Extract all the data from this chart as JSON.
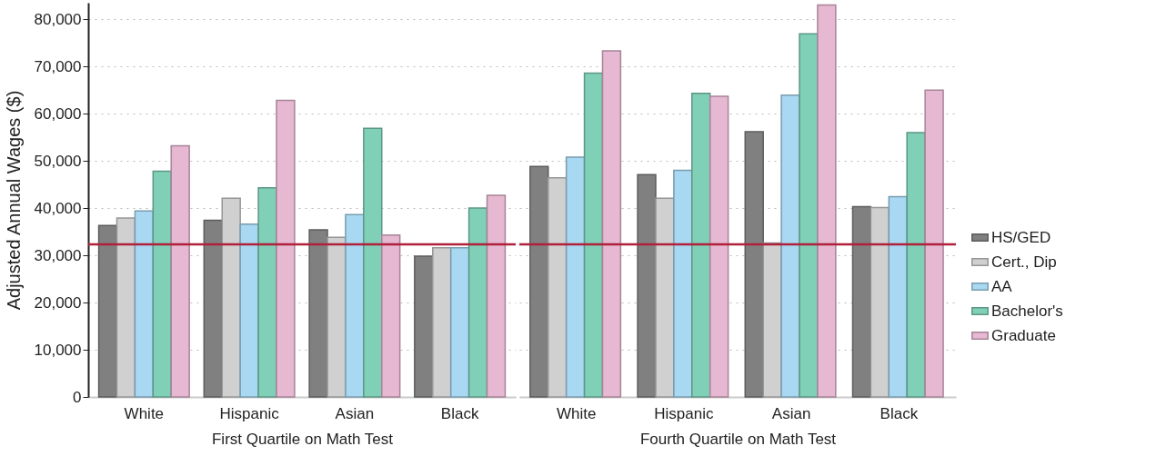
{
  "chart_data": [
    {
      "type": "bar",
      "xlabel": "First Quartile on Math Test",
      "ylabel": "Adjusted Annual Wages ($)",
      "categories": [
        "White",
        "Hispanic",
        "Asian",
        "Black"
      ],
      "series": [
        {
          "color": "#808080",
          "values": [
            36300,
            37400,
            35400,
            29800
          ]
        },
        {
          "color": "#d0d0d0",
          "values": [
            37900,
            42100,
            33800,
            31600
          ]
        },
        {
          "color": "#a8d8f2",
          "values": [
            39400,
            36600,
            38600,
            31600
          ]
        },
        {
          "color": "#80d0b8",
          "values": [
            47800,
            44300,
            56900,
            40000
          ]
        },
        {
          "color": "#e6b8d2",
          "values": [
            53200,
            62800,
            34300,
            42700
          ]
        }
      ],
      "ylim": [
        0,
        83500
      ],
      "yticks": [
        0,
        {
          "value": 10000,
          "label": "10,000"
        },
        {
          "value": 20000,
          "label": "20,000"
        },
        {
          "value": 30000,
          "label": "30,000"
        },
        {
          "value": 40000,
          "label": "40,000"
        },
        {
          "value": 50000,
          "label": "50,000"
        },
        {
          "value": 60000,
          "label": "60,000"
        },
        {
          "value": 70000,
          "label": "70,000"
        },
        {
          "value": 80000,
          "label": "80,000"
        }
      ],
      "grid": "y",
      "legend": false,
      "ref_lines": [
        {
          "axis": "y",
          "value": 32300,
          "color": "#b0203a"
        }
      ]
    },
    {
      "type": "bar",
      "xlabel": "Fourth Quartile on Math Test",
      "categories": [
        "White",
        "Hispanic",
        "Asian",
        "Black"
      ],
      "series": [
        {
          "name": "HS/GED",
          "color": "#808080",
          "values": [
            48800,
            47100,
            56200,
            40300
          ]
        },
        {
          "name": "Cert., Dip",
          "color": "#d0d0d0",
          "values": [
            46400,
            42100,
            32600,
            40100
          ]
        },
        {
          "name": "AA",
          "color": "#a8d8f2",
          "values": [
            50800,
            48000,
            63900,
            42400
          ]
        },
        {
          "name": "Bachelor's",
          "color": "#80d0b8",
          "values": [
            68600,
            64300,
            76900,
            56000
          ]
        },
        {
          "name": "Graduate",
          "color": "#e6b8d2",
          "values": [
            73300,
            63700,
            83000,
            65000
          ]
        }
      ],
      "ylim": [
        0,
        83500
      ],
      "yticks": [
        0,
        10000,
        20000,
        30000,
        40000,
        50000,
        60000,
        70000,
        80000
      ],
      "grid": "y",
      "legend": "right",
      "tick_labels": "x",
      "ref_lines": [
        {
          "axis": "y",
          "value": 32300,
          "color": "#b0203a"
        }
      ]
    }
  ]
}
